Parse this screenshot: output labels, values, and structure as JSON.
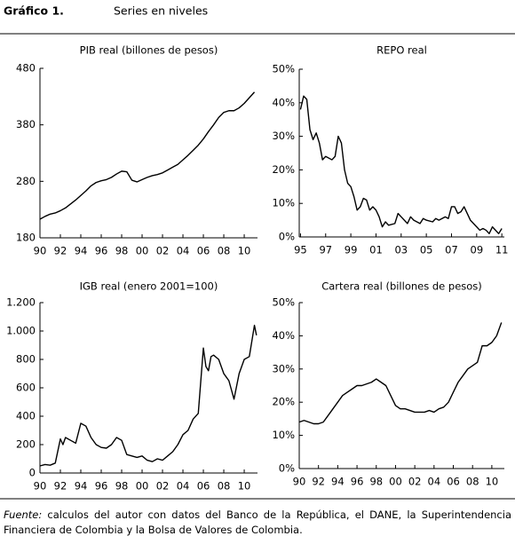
{
  "header": {
    "title": "Gráfico 1.",
    "subtitle": "Series en niveles"
  },
  "footer": {
    "source_label": "Fuente:",
    "source_text": "calculos del autor con datos del Banco de la República, el DANE, la Superintendencia Financiera de Colombia y la Bolsa de Valores de Colombia."
  },
  "chart_data": [
    {
      "type": "line",
      "title": "PIB real (billones de pesos)",
      "color": "#000000",
      "x": [
        1990,
        1990.5,
        1991,
        1991.5,
        1992,
        1992.5,
        1993,
        1993.5,
        1994,
        1994.5,
        1995,
        1995.5,
        1996,
        1996.5,
        1997,
        1997.5,
        1998,
        1998.5,
        1999,
        1999.5,
        2000,
        2000.5,
        2001,
        2001.5,
        2002,
        2002.5,
        2003,
        2003.5,
        2004,
        2004.5,
        2005,
        2005.5,
        2006,
        2006.5,
        2007,
        2007.5,
        2008,
        2008.5,
        2009,
        2009.5,
        2010,
        2010.5,
        2011
      ],
      "values": [
        213,
        218,
        222,
        224,
        228,
        233,
        240,
        247,
        255,
        263,
        272,
        278,
        281,
        283,
        287,
        293,
        298,
        297,
        282,
        279,
        283,
        287,
        290,
        292,
        295,
        300,
        305,
        310,
        318,
        326,
        335,
        344,
        355,
        368,
        380,
        393,
        402,
        405,
        405,
        410,
        418,
        428,
        438
      ],
      "xlim": [
        1990,
        2011.3
      ],
      "xticks": [
        {
          "value": 1990,
          "label": "90"
        },
        {
          "value": 1992,
          "label": "92"
        },
        {
          "value": 1994,
          "label": "94"
        },
        {
          "value": 1996,
          "label": "96"
        },
        {
          "value": 1998,
          "label": "98"
        },
        {
          "value": 2000,
          "label": "00"
        },
        {
          "value": 2002,
          "label": "02"
        },
        {
          "value": 2004,
          "label": "04"
        },
        {
          "value": 2006,
          "label": "06"
        },
        {
          "value": 2008,
          "label": "08"
        },
        {
          "value": 2010,
          "label": "10"
        }
      ],
      "ylim": [
        180,
        480
      ],
      "yticks": [
        180,
        280,
        380,
        480
      ],
      "grid": false
    },
    {
      "type": "line",
      "title": "REPO real",
      "color": "#000000",
      "x": [
        1995,
        1995.25,
        1995.5,
        1995.75,
        1996,
        1996.25,
        1996.5,
        1996.75,
        1997,
        1997.5,
        1997.75,
        1998,
        1998.25,
        1998.5,
        1998.75,
        1999,
        1999.25,
        1999.5,
        1999.75,
        2000,
        2000.25,
        2000.5,
        2000.75,
        2001,
        2001.25,
        2001.5,
        2001.75,
        2002,
        2002.5,
        2002.75,
        2003,
        2003.5,
        2003.75,
        2004,
        2004.5,
        2004.75,
        2005,
        2005.5,
        2005.75,
        2006,
        2006.5,
        2006.75,
        2007,
        2007.25,
        2007.5,
        2007.75,
        2008,
        2008.5,
        2008.75,
        2009,
        2009.25,
        2009.5,
        2009.75,
        2010,
        2010.25,
        2010.75,
        2011
      ],
      "values": [
        38,
        42,
        41,
        32,
        29,
        31,
        28,
        23,
        24,
        23,
        24,
        30,
        28,
        20,
        16,
        15,
        12,
        8,
        9,
        11.5,
        11,
        8,
        9,
        8,
        6,
        3,
        4.5,
        3.5,
        4,
        7,
        6,
        4,
        6,
        5,
        4,
        5.5,
        5,
        4.5,
        5.5,
        5,
        6,
        5.5,
        9,
        9,
        7,
        7.5,
        9,
        5,
        4,
        3,
        2,
        2.5,
        2,
        1,
        3,
        1,
        2.5
      ],
      "xlim": [
        1994.9,
        2011.2
      ],
      "xticks": [
        {
          "value": 1995,
          "label": "95"
        },
        {
          "value": 1997,
          "label": "97"
        },
        {
          "value": 1999,
          "label": "99"
        },
        {
          "value": 2001,
          "label": "01"
        },
        {
          "value": 2003,
          "label": "03"
        },
        {
          "value": 2005,
          "label": "05"
        },
        {
          "value": 2007,
          "label": "07"
        },
        {
          "value": 2009,
          "label": "09"
        },
        {
          "value": 2011,
          "label": "11"
        }
      ],
      "ylim": [
        0,
        50
      ],
      "yticks": [
        {
          "value": 0,
          "label": "0%"
        },
        {
          "value": 10,
          "label": "10%"
        },
        {
          "value": 20,
          "label": "20%"
        },
        {
          "value": 30,
          "label": "30%"
        },
        {
          "value": 40,
          "label": "40%"
        },
        {
          "value": 50,
          "label": "50%"
        }
      ],
      "grid": false
    },
    {
      "type": "line",
      "title": "IGB real (enero 2001=100)",
      "color": "#000000",
      "x": [
        1990,
        1990.5,
        1991,
        1991.5,
        1992,
        1992.25,
        1992.5,
        1993,
        1993.5,
        1994,
        1994.5,
        1995,
        1995.5,
        1996,
        1996.5,
        1997,
        1997.5,
        1998,
        1998.5,
        1999,
        1999.5,
        2000,
        2000.5,
        2001,
        2001.5,
        2002,
        2002.5,
        2003,
        2003.5,
        2004,
        2004.5,
        2005,
        2005.5,
        2006,
        2006.25,
        2006.5,
        2006.75,
        2007,
        2007.5,
        2008,
        2008.5,
        2009,
        2009.5,
        2010,
        2010.5,
        2011,
        2011.2
      ],
      "values": [
        50,
        60,
        55,
        70,
        240,
        200,
        250,
        230,
        210,
        350,
        330,
        250,
        200,
        180,
        175,
        200,
        250,
        230,
        130,
        120,
        110,
        120,
        90,
        80,
        100,
        90,
        120,
        150,
        200,
        270,
        300,
        380,
        420,
        880,
        750,
        720,
        820,
        830,
        800,
        700,
        650,
        520,
        700,
        800,
        820,
        1040,
        970
      ],
      "xlim": [
        1990,
        2011.3
      ],
      "xticks": [
        {
          "value": 1990,
          "label": "90"
        },
        {
          "value": 1992,
          "label": "92"
        },
        {
          "value": 1994,
          "label": "94"
        },
        {
          "value": 1996,
          "label": "96"
        },
        {
          "value": 1998,
          "label": "98"
        },
        {
          "value": 2000,
          "label": "00"
        },
        {
          "value": 2002,
          "label": "02"
        },
        {
          "value": 2004,
          "label": "04"
        },
        {
          "value": 2006,
          "label": "06"
        },
        {
          "value": 2008,
          "label": "08"
        },
        {
          "value": 2010,
          "label": "10"
        }
      ],
      "ylim": [
        0,
        1200
      ],
      "yticks": [
        0,
        200,
        400,
        600,
        800,
        {
          "value": 1000,
          "label": "1.000"
        },
        {
          "value": 1200,
          "label": "1.200"
        }
      ],
      "grid": false
    },
    {
      "type": "line",
      "title": "Cartera real (billones de pesos)",
      "color": "#000000",
      "x": [
        1990,
        1990.5,
        1991,
        1991.5,
        1992,
        1992.5,
        1993,
        1993.5,
        1994,
        1994.5,
        1995,
        1995.5,
        1996,
        1996.5,
        1997,
        1997.5,
        1998,
        1998.5,
        1999,
        1999.5,
        2000,
        2000.5,
        2001,
        2001.5,
        2002,
        2002.5,
        2003,
        2003.5,
        2004,
        2004.5,
        2005,
        2005.5,
        2006,
        2006.5,
        2007,
        2007.5,
        2008,
        2008.5,
        2009,
        2009.5,
        2010,
        2010.5,
        2011
      ],
      "values": [
        14,
        14.5,
        14,
        13.5,
        13.5,
        14,
        16,
        18,
        20,
        22,
        23,
        24,
        25,
        25,
        25.5,
        26,
        27,
        26,
        25,
        22,
        19,
        18,
        18,
        17.5,
        17,
        17,
        17,
        17.5,
        17,
        18,
        18.5,
        20,
        23,
        26,
        28,
        30,
        31,
        32,
        37,
        37,
        38,
        40,
        44
      ],
      "xlim": [
        1990,
        2011.3
      ],
      "xticks": [
        {
          "value": 1990,
          "label": "90"
        },
        {
          "value": 1992,
          "label": "92"
        },
        {
          "value": 1994,
          "label": "94"
        },
        {
          "value": 1996,
          "label": "96"
        },
        {
          "value": 1998,
          "label": "98"
        },
        {
          "value": 2000,
          "label": "00"
        },
        {
          "value": 2002,
          "label": "02"
        },
        {
          "value": 2004,
          "label": "04"
        },
        {
          "value": 2006,
          "label": "06"
        },
        {
          "value": 2008,
          "label": "08"
        },
        {
          "value": 2010,
          "label": "10"
        }
      ],
      "ylim": [
        0,
        50
      ],
      "yticks": [
        {
          "value": 0,
          "label": "0%"
        },
        {
          "value": 10,
          "label": "10%"
        },
        {
          "value": 20,
          "label": "20%"
        },
        {
          "value": 30,
          "label": "30%"
        },
        {
          "value": 40,
          "label": "40%"
        },
        {
          "value": 50,
          "label": "50%"
        }
      ],
      "grid": false
    }
  ]
}
